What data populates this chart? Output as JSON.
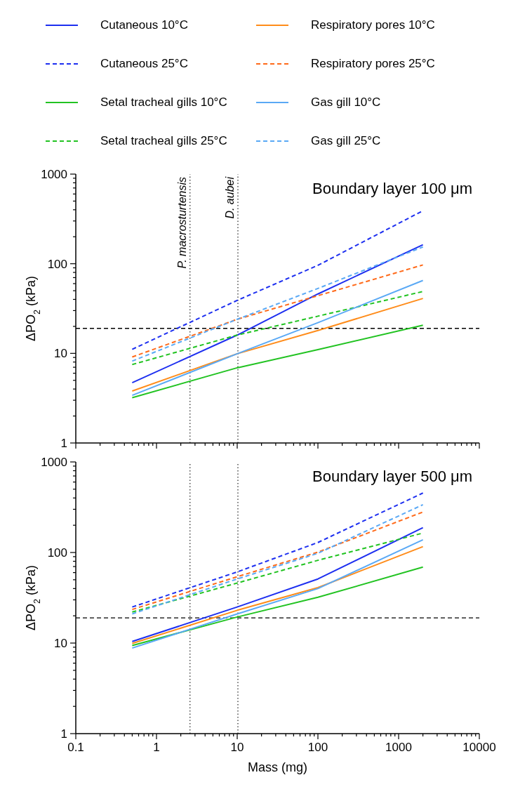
{
  "chart_data": [
    {
      "type": "line",
      "title": "Boundary layer 100 μm",
      "ylabel": "ΔPO$_{2}$ (kPa)",
      "log": "xy",
      "legend": "top",
      "marker": "none",
      "tick_labels": "y",
      "xlim": [
        0.1,
        10000
      ],
      "ylim": [
        1,
        1000
      ],
      "xticks": [
        0.1,
        {
          "value": 0.2,
          "label": null
        },
        {
          "value": 0.3,
          "label": null
        },
        {
          "value": 0.4,
          "label": null
        },
        {
          "value": 0.5,
          "label": null
        },
        {
          "value": 0.6,
          "label": null
        },
        {
          "value": 0.7,
          "label": null
        },
        {
          "value": 0.8,
          "label": null
        },
        {
          "value": 0.9,
          "label": null
        },
        1,
        {
          "value": 2,
          "label": null
        },
        {
          "value": 3,
          "label": null
        },
        {
          "value": 4,
          "label": null
        },
        {
          "value": 5,
          "label": null
        },
        {
          "value": 6,
          "label": null
        },
        {
          "value": 7,
          "label": null
        },
        {
          "value": 8,
          "label": null
        },
        {
          "value": 9,
          "label": null
        },
        10,
        {
          "value": 20,
          "label": null
        },
        {
          "value": 30,
          "label": null
        },
        {
          "value": 40,
          "label": null
        },
        {
          "value": 50,
          "label": null
        },
        {
          "value": 60,
          "label": null
        },
        {
          "value": 70,
          "label": null
        },
        {
          "value": 80,
          "label": null
        },
        {
          "value": 90,
          "label": null
        },
        100,
        {
          "value": 200,
          "label": null
        },
        {
          "value": 300,
          "label": null
        },
        {
          "value": 400,
          "label": null
        },
        {
          "value": 500,
          "label": null
        },
        {
          "value": 600,
          "label": null
        },
        {
          "value": 700,
          "label": null
        },
        {
          "value": 800,
          "label": null
        },
        {
          "value": 900,
          "label": null
        },
        1000,
        {
          "value": 2000,
          "label": null
        },
        {
          "value": 3000,
          "label": null
        },
        {
          "value": 4000,
          "label": null
        },
        {
          "value": 5000,
          "label": null
        },
        {
          "value": 6000,
          "label": null
        },
        {
          "value": 7000,
          "label": null
        },
        {
          "value": 8000,
          "label": null
        },
        {
          "value": 9000,
          "label": null
        },
        10000
      ],
      "yticks": [
        1,
        {
          "value": 2,
          "label": null
        },
        {
          "value": 3,
          "label": null
        },
        {
          "value": 4,
          "label": null
        },
        {
          "value": 5,
          "label": null
        },
        {
          "value": 6,
          "label": null
        },
        {
          "value": 7,
          "label": null
        },
        {
          "value": 8,
          "label": null
        },
        {
          "value": 9,
          "label": null
        },
        10,
        {
          "value": 20,
          "label": null
        },
        {
          "value": 30,
          "label": null
        },
        {
          "value": 40,
          "label": null
        },
        {
          "value": 50,
          "label": null
        },
        {
          "value": 60,
          "label": null
        },
        {
          "value": 70,
          "label": null
        },
        {
          "value": 80,
          "label": null
        },
        {
          "value": 90,
          "label": null
        },
        100,
        {
          "value": 200,
          "label": null
        },
        {
          "value": 300,
          "label": null
        },
        {
          "value": 400,
          "label": null
        },
        {
          "value": 500,
          "label": null
        },
        {
          "value": 600,
          "label": null
        },
        {
          "value": 700,
          "label": null
        },
        {
          "value": 800,
          "label": null
        },
        {
          "value": 900,
          "label": null
        },
        1000
      ],
      "x": [
        0.5,
        10,
        100,
        2000
      ],
      "series": [
        {
          "name": "Cutaneous 10°C",
          "color": "#1d2ff0",
          "line_style": "solid",
          "values": [
            4.7,
            16,
            46,
            163
          ]
        },
        {
          "name": "Cutaneous 25°C",
          "color": "#1d2ff0",
          "line_style": "dashed",
          "values": [
            11.1,
            39,
            96,
            390
          ]
        },
        {
          "name": "Setal tracheal gills 10°C",
          "color": "#22c322",
          "line_style": "solid",
          "values": [
            3.2,
            6.9,
            11,
            20.6
          ]
        },
        {
          "name": "Setal tracheal gills 25°C",
          "color": "#22c322",
          "line_style": "dashed",
          "values": [
            7.5,
            16,
            26,
            49
          ]
        },
        {
          "name": "Respiratory pores 10°C",
          "color": "#ff8c1a",
          "line_style": "solid",
          "values": [
            3.8,
            9.9,
            18,
            41
          ]
        },
        {
          "name": "Respiratory pores 25°C",
          "color": "#ff6a1a",
          "line_style": "dashed",
          "values": [
            9.1,
            24,
            44,
            97
          ]
        },
        {
          "name": "Gas gill 10°C",
          "color": "#5aa9f5",
          "line_style": "solid",
          "values": [
            3.4,
            9.9,
            22,
            65
          ]
        },
        {
          "name": "Gas gill 25°C",
          "color": "#5aa9f5",
          "line_style": "dashed",
          "values": [
            8.2,
            24,
            53,
            154
          ]
        }
      ],
      "ref_lines": [
        {
          "axis": "x",
          "value": 2.6,
          "label": "P. macrosturtensis",
          "line_style": "dotted",
          "color": "#333333"
        },
        {
          "axis": "x",
          "value": 10.2,
          "label": "D. aubei",
          "line_style": "dotted",
          "color": "#333333"
        },
        {
          "axis": "y",
          "value": 19,
          "line_style": "dashed",
          "color": "#000000"
        }
      ]
    },
    {
      "type": "line",
      "title": "Boundary layer 500 μm",
      "xlabel": "Mass (mg)",
      "ylabel": "ΔPO$_{2}$ (kPa)",
      "log": "xy",
      "marker": "none",
      "xlim": [
        0.1,
        10000
      ],
      "ylim": [
        1,
        1000
      ],
      "xticks": [
        0.1,
        {
          "value": 0.2,
          "label": null
        },
        {
          "value": 0.3,
          "label": null
        },
        {
          "value": 0.4,
          "label": null
        },
        {
          "value": 0.5,
          "label": null
        },
        {
          "value": 0.6,
          "label": null
        },
        {
          "value": 0.7,
          "label": null
        },
        {
          "value": 0.8,
          "label": null
        },
        {
          "value": 0.9,
          "label": null
        },
        1,
        {
          "value": 2,
          "label": null
        },
        {
          "value": 3,
          "label": null
        },
        {
          "value": 4,
          "label": null
        },
        {
          "value": 5,
          "label": null
        },
        {
          "value": 6,
          "label": null
        },
        {
          "value": 7,
          "label": null
        },
        {
          "value": 8,
          "label": null
        },
        {
          "value": 9,
          "label": null
        },
        10,
        {
          "value": 20,
          "label": null
        },
        {
          "value": 30,
          "label": null
        },
        {
          "value": 40,
          "label": null
        },
        {
          "value": 50,
          "label": null
        },
        {
          "value": 60,
          "label": null
        },
        {
          "value": 70,
          "label": null
        },
        {
          "value": 80,
          "label": null
        },
        {
          "value": 90,
          "label": null
        },
        100,
        {
          "value": 200,
          "label": null
        },
        {
          "value": 300,
          "label": null
        },
        {
          "value": 400,
          "label": null
        },
        {
          "value": 500,
          "label": null
        },
        {
          "value": 600,
          "label": null
        },
        {
          "value": 700,
          "label": null
        },
        {
          "value": 800,
          "label": null
        },
        {
          "value": 900,
          "label": null
        },
        1000,
        {
          "value": 2000,
          "label": null
        },
        {
          "value": 3000,
          "label": null
        },
        {
          "value": 4000,
          "label": null
        },
        {
          "value": 5000,
          "label": null
        },
        {
          "value": 6000,
          "label": null
        },
        {
          "value": 7000,
          "label": null
        },
        {
          "value": 8000,
          "label": null
        },
        {
          "value": 9000,
          "label": null
        },
        10000
      ],
      "yticks": [
        1,
        {
          "value": 2,
          "label": null
        },
        {
          "value": 3,
          "label": null
        },
        {
          "value": 4,
          "label": null
        },
        {
          "value": 5,
          "label": null
        },
        {
          "value": 6,
          "label": null
        },
        {
          "value": 7,
          "label": null
        },
        {
          "value": 8,
          "label": null
        },
        {
          "value": 9,
          "label": null
        },
        10,
        {
          "value": 20,
          "label": null
        },
        {
          "value": 30,
          "label": null
        },
        {
          "value": 40,
          "label": null
        },
        {
          "value": 50,
          "label": null
        },
        {
          "value": 60,
          "label": null
        },
        {
          "value": 70,
          "label": null
        },
        {
          "value": 80,
          "label": null
        },
        {
          "value": 90,
          "label": null
        },
        100,
        {
          "value": 200,
          "label": null
        },
        {
          "value": 300,
          "label": null
        },
        {
          "value": 400,
          "label": null
        },
        {
          "value": 500,
          "label": null
        },
        {
          "value": 600,
          "label": null
        },
        {
          "value": 700,
          "label": null
        },
        {
          "value": 800,
          "label": null
        },
        {
          "value": 900,
          "label": null
        },
        1000
      ],
      "x": [
        0.5,
        10,
        100,
        2000
      ],
      "series": [
        {
          "color": "#1d2ff0",
          "line_style": "solid",
          "values": [
            10.4,
            25,
            51,
            188
          ]
        },
        {
          "color": "#1d2ff0",
          "line_style": "dashed",
          "values": [
            25,
            61,
            129,
            454
          ]
        },
        {
          "color": "#22c322",
          "line_style": "solid",
          "values": [
            9.4,
            19.4,
            32,
            69
          ]
        },
        {
          "color": "#22c322",
          "line_style": "dashed",
          "values": [
            22,
            46,
            82,
            164
          ]
        },
        {
          "color": "#ff8c1a",
          "line_style": "solid",
          "values": [
            9.9,
            23,
            41,
            116
          ]
        },
        {
          "color": "#ff6a1a",
          "line_style": "dashed",
          "values": [
            23.5,
            54,
            101,
            280
          ]
        },
        {
          "color": "#5aa9f5",
          "line_style": "solid",
          "values": [
            8.8,
            21,
            40,
            138
          ]
        },
        {
          "color": "#5aa9f5",
          "line_style": "dashed",
          "values": [
            21,
            51,
            98,
            337
          ]
        }
      ],
      "ref_lines": [
        {
          "axis": "x",
          "value": 2.6,
          "line_style": "dotted",
          "color": "#333333"
        },
        {
          "axis": "x",
          "value": 10.2,
          "line_style": "dotted",
          "color": "#333333"
        },
        {
          "axis": "y",
          "value": 19,
          "line_style": "dashed",
          "color": "#000000"
        }
      ]
    }
  ]
}
